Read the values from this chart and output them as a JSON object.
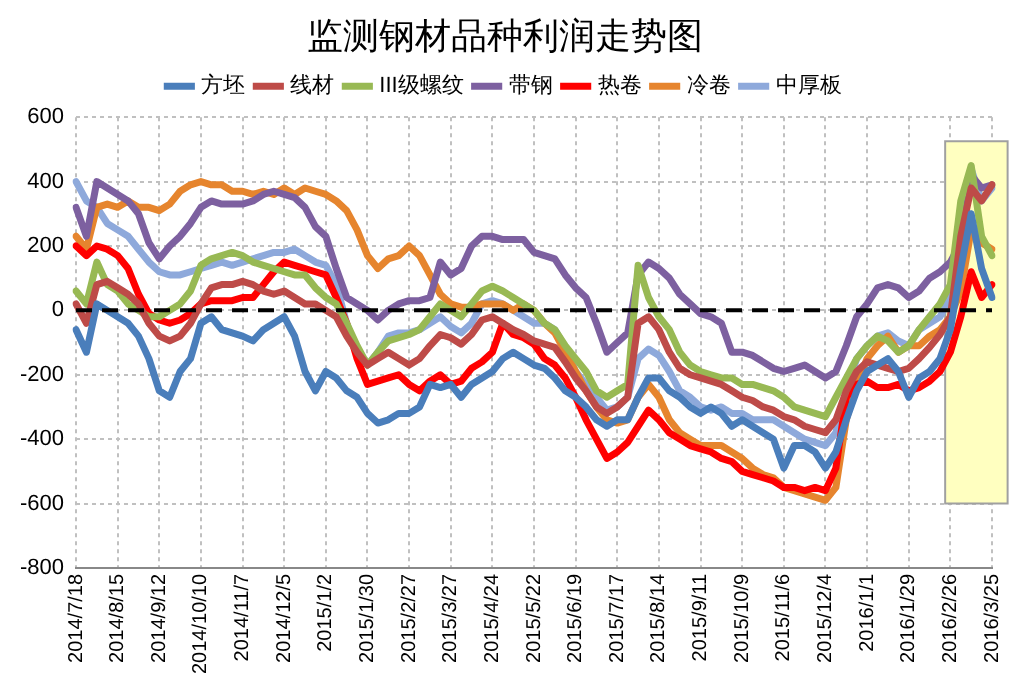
{
  "chart_data": {
    "type": "line",
    "title": "监测钢材品种利润走势图",
    "categories": [
      "2014/7/18",
      null,
      null,
      null,
      "2014/8/15",
      null,
      null,
      null,
      "2014/9/12",
      null,
      null,
      null,
      "2014/10/10",
      null,
      null,
      null,
      "2014/11/7",
      null,
      null,
      null,
      "2014/12/5",
      null,
      null,
      null,
      "2015/1/2",
      null,
      null,
      null,
      "2015/1/30",
      null,
      null,
      null,
      "2015/2/27",
      null,
      null,
      null,
      "2015/3/27",
      null,
      null,
      null,
      "2015/4/24",
      null,
      null,
      null,
      "2015/5/22",
      null,
      null,
      null,
      "2015/6/19",
      null,
      null,
      null,
      "2015/7/17",
      null,
      null,
      null,
      "2015/8/14",
      null,
      null,
      null,
      "2015/9/11",
      null,
      null,
      null,
      "2015/10/9",
      null,
      null,
      null,
      "2015/11/6",
      null,
      null,
      null,
      "2015/12/4",
      null,
      null,
      null,
      "2016/1/1",
      null,
      null,
      null,
      "2016/1/29",
      null,
      null,
      null,
      "2016/2/26",
      null,
      null,
      null,
      "2016/3/25"
    ],
    "series": [
      {
        "name": "方坯",
        "color": "#4a7ebb",
        "values": [
          -60,
          -130,
          20,
          0,
          -20,
          -40,
          -80,
          -150,
          -250,
          -270,
          -190,
          -150,
          -40,
          -20,
          -60,
          -70,
          -80,
          -95,
          -60,
          -40,
          -20,
          -80,
          -190,
          -250,
          -190,
          -210,
          -250,
          -270,
          -320,
          -350,
          -340,
          -320,
          -320,
          -300,
          -230,
          -240,
          -230,
          -270,
          -230,
          -210,
          -190,
          -150,
          -130,
          -150,
          -170,
          -180,
          -210,
          -250,
          -270,
          -300,
          -340,
          -360,
          -340,
          -340,
          -270,
          -210,
          -210,
          -250,
          -270,
          -300,
          -320,
          -300,
          -320,
          -360,
          -340,
          -360,
          -380,
          -400,
          -490,
          -420,
          -420,
          -440,
          -490,
          -440,
          -340,
          -250,
          -190,
          -170,
          -150,
          -190,
          -270,
          -210,
          -190,
          -150,
          -60,
          130,
          300,
          130,
          40
        ]
      },
      {
        "name": "线材",
        "color": "#be4b48",
        "values": [
          20,
          -40,
          80,
          90,
          70,
          50,
          20,
          -40,
          -80,
          -95,
          -80,
          -40,
          20,
          70,
          80,
          80,
          90,
          80,
          60,
          50,
          60,
          40,
          20,
          20,
          0,
          -20,
          -80,
          -130,
          -170,
          -150,
          -130,
          -150,
          -170,
          -150,
          -110,
          -75,
          -85,
          -105,
          -75,
          -30,
          -20,
          -40,
          -60,
          -75,
          -95,
          -105,
          -115,
          -160,
          -210,
          -250,
          -300,
          -320,
          -300,
          -270,
          -40,
          -20,
          -60,
          -130,
          -180,
          -200,
          -210,
          -220,
          -230,
          -250,
          -270,
          -280,
          -300,
          -310,
          -330,
          -340,
          -360,
          -370,
          -380,
          -340,
          -250,
          -190,
          -160,
          -170,
          -180,
          -190,
          -180,
          -150,
          -115,
          -75,
          -20,
          230,
          380,
          340,
          390
        ]
      },
      {
        "name": "III级螺纹",
        "color": "#98b954",
        "values": [
          60,
          20,
          150,
          80,
          60,
          20,
          0,
          -20,
          -20,
          0,
          20,
          60,
          140,
          160,
          170,
          180,
          170,
          150,
          140,
          130,
          120,
          110,
          110,
          70,
          40,
          20,
          -40,
          -110,
          -170,
          -130,
          -95,
          -85,
          -75,
          -60,
          -20,
          20,
          0,
          -20,
          20,
          60,
          75,
          60,
          40,
          20,
          0,
          -40,
          -60,
          -110,
          -150,
          -190,
          -250,
          -270,
          -250,
          -230,
          140,
          40,
          -20,
          -60,
          -130,
          -170,
          -190,
          -200,
          -210,
          -210,
          -230,
          -230,
          -240,
          -250,
          -270,
          -300,
          -310,
          -320,
          -330,
          -270,
          -210,
          -150,
          -110,
          -80,
          -95,
          -130,
          -110,
          -60,
          -20,
          20,
          80,
          340,
          450,
          230,
          170
        ]
      },
      {
        "name": "带钢",
        "color": "#7d60a0",
        "values": [
          320,
          230,
          400,
          380,
          360,
          340,
          300,
          210,
          160,
          200,
          230,
          270,
          320,
          340,
          330,
          330,
          330,
          340,
          360,
          370,
          360,
          350,
          320,
          260,
          230,
          130,
          40,
          20,
          0,
          -30,
          0,
          20,
          30,
          30,
          40,
          150,
          110,
          130,
          200,
          230,
          230,
          220,
          220,
          220,
          180,
          170,
          160,
          110,
          70,
          40,
          -40,
          -130,
          -100,
          -70,
          110,
          150,
          130,
          100,
          50,
          20,
          -10,
          -20,
          -40,
          -130,
          -130,
          -140,
          -160,
          -180,
          -190,
          -180,
          -170,
          -190,
          -210,
          -190,
          -110,
          -20,
          20,
          70,
          80,
          70,
          40,
          60,
          100,
          120,
          150,
          210,
          420,
          380,
          390
        ]
      },
      {
        "name": "热卷",
        "color": "#ff0000",
        "values": [
          200,
          170,
          200,
          190,
          170,
          130,
          50,
          -10,
          -30,
          -40,
          -30,
          -10,
          20,
          30,
          30,
          30,
          40,
          40,
          80,
          120,
          150,
          140,
          130,
          120,
          110,
          40,
          -40,
          -150,
          -230,
          -220,
          -210,
          -200,
          -230,
          -250,
          -220,
          -200,
          -230,
          -220,
          -180,
          -160,
          -130,
          -40,
          -75,
          -85,
          -105,
          -150,
          -170,
          -210,
          -270,
          -340,
          -400,
          -460,
          -440,
          -410,
          -360,
          -310,
          -340,
          -380,
          -400,
          -420,
          -430,
          -440,
          -460,
          -470,
          -500,
          -510,
          -520,
          -530,
          -550,
          -550,
          -560,
          -550,
          -560,
          -490,
          -270,
          -230,
          -220,
          -240,
          -240,
          -230,
          -250,
          -240,
          -220,
          -190,
          -130,
          -20,
          120,
          40,
          80
        ]
      },
      {
        "name": "冷卷",
        "color": "#e6852e",
        "values": [
          230,
          190,
          320,
          330,
          320,
          340,
          320,
          320,
          310,
          330,
          370,
          390,
          400,
          390,
          390,
          370,
          370,
          360,
          370,
          360,
          380,
          360,
          380,
          370,
          360,
          340,
          310,
          250,
          170,
          130,
          160,
          170,
          200,
          170,
          110,
          50,
          20,
          10,
          10,
          20,
          20,
          20,
          0,
          20,
          0,
          -40,
          -70,
          -130,
          -190,
          -250,
          -300,
          -340,
          -350,
          -340,
          -270,
          -230,
          -270,
          -340,
          -380,
          -400,
          -420,
          -420,
          -420,
          -440,
          -460,
          -490,
          -510,
          -520,
          -550,
          -560,
          -570,
          -580,
          -590,
          -550,
          -340,
          -230,
          -150,
          -110,
          -80,
          -130,
          -110,
          -110,
          -80,
          -60,
          -20,
          60,
          250,
          210,
          190
        ]
      },
      {
        "name": "中厚板",
        "color": "#8ea9db",
        "values": [
          400,
          340,
          320,
          270,
          250,
          230,
          190,
          150,
          120,
          110,
          110,
          120,
          130,
          140,
          150,
          140,
          150,
          160,
          170,
          180,
          180,
          190,
          170,
          150,
          140,
          80,
          -40,
          -130,
          -170,
          -130,
          -80,
          -70,
          -70,
          -60,
          -40,
          -20,
          -50,
          -70,
          -40,
          20,
          30,
          20,
          0,
          -20,
          -40,
          -40,
          -60,
          -115,
          -190,
          -230,
          -270,
          -310,
          -300,
          -270,
          -150,
          -120,
          -140,
          -190,
          -250,
          -270,
          -300,
          -310,
          -300,
          -320,
          -320,
          -340,
          -340,
          -340,
          -360,
          -380,
          -400,
          -410,
          -420,
          -380,
          -250,
          -150,
          -110,
          -80,
          -70,
          -95,
          -110,
          -60,
          -40,
          -20,
          40,
          190,
          440,
          340,
          380
        ]
      }
    ],
    "ylim": [
      -800,
      600
    ],
    "yticks": [
      -800,
      -600,
      -400,
      -200,
      0,
      200,
      400,
      600
    ],
    "grid": true,
    "legend": "top",
    "marker": "none",
    "line_style": "solid",
    "ref_lines": [
      {
        "axis": "y",
        "value": 0,
        "color": "#000000",
        "line_style": "dashed"
      }
    ],
    "bands": [
      {
        "axis": "x",
        "from": "2016/2/26",
        "to": "2016/3/25",
        "color": "#ffffc0"
      }
    ]
  }
}
